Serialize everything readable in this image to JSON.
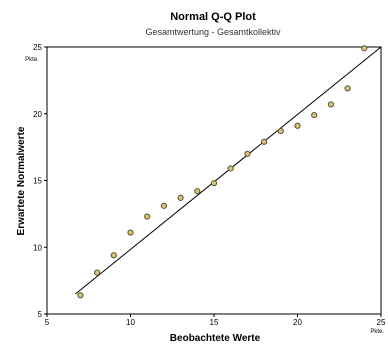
{
  "chart_data": {
    "type": "scatter",
    "title": "Normal Q-Q Plot",
    "subtitle": "Gesamtwertung - Gesamtkollektiv",
    "xlabel": "Beobachtete Werte",
    "ylabel": "Erwartete Normalwerte",
    "x_unit": "Pkte.",
    "y_unit": "Pkte.",
    "xlim": [
      5,
      25
    ],
    "ylim": [
      5,
      25
    ],
    "xticks": [
      "5",
      "10",
      "15",
      "20",
      "25"
    ],
    "yticks": [
      "5",
      "10",
      "15",
      "20",
      "25"
    ],
    "grid": false,
    "reference_line": {
      "x": [
        6.7,
        25
      ],
      "y": [
        6.5,
        25
      ]
    },
    "series": [
      {
        "points": [
          {
            "x": 7,
            "y": 6.4
          },
          {
            "x": 8,
            "y": 8.1
          },
          {
            "x": 9,
            "y": 9.4
          },
          {
            "x": 10,
            "y": 11.1
          },
          {
            "x": 11,
            "y": 12.3
          },
          {
            "x": 12,
            "y": 13.1
          },
          {
            "x": 13,
            "y": 13.7
          },
          {
            "x": 14,
            "y": 14.2
          },
          {
            "x": 15,
            "y": 14.8
          },
          {
            "x": 16,
            "y": 15.9
          },
          {
            "x": 17,
            "y": 17.0
          },
          {
            "x": 18,
            "y": 17.9
          },
          {
            "x": 19,
            "y": 18.7
          },
          {
            "x": 20,
            "y": 19.1
          },
          {
            "x": 21,
            "y": 19.9
          },
          {
            "x": 22,
            "y": 20.7
          },
          {
            "x": 23,
            "y": 21.9
          },
          {
            "x": 24,
            "y": 24.9
          }
        ]
      }
    ],
    "colors": {
      "marker_fill": "#d8c47a",
      "marker_stroke": "#5a5030",
      "line": "#000000",
      "axis": "#000000"
    }
  }
}
